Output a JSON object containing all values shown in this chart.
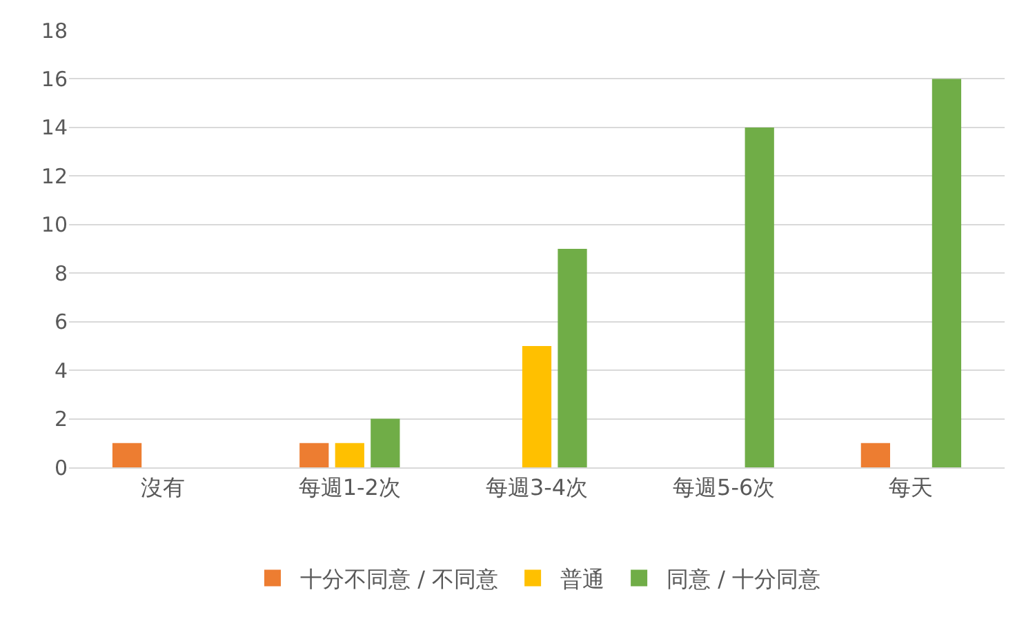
{
  "chart_data": {
    "type": "bar",
    "categories": [
      "沒有",
      "每週1-2次",
      "每週3-4次",
      "每週5-6次",
      "每天"
    ],
    "series": [
      {
        "name": "十分不同意 / 不同意",
        "color": "#ed7d31",
        "values": [
          1,
          1,
          0,
          0,
          1
        ]
      },
      {
        "name": "普通",
        "color": "#ffc000",
        "values": [
          0,
          1,
          5,
          0,
          0
        ]
      },
      {
        "name": "同意 / 十分同意",
        "color": "#70ad47",
        "values": [
          0,
          2,
          9,
          14,
          16
        ]
      }
    ],
    "ylim": [
      0,
      18
    ],
    "yticks": [
      0,
      2,
      4,
      6,
      8,
      10,
      12,
      14,
      16,
      18
    ],
    "grid": "y",
    "legend": "bottom"
  }
}
